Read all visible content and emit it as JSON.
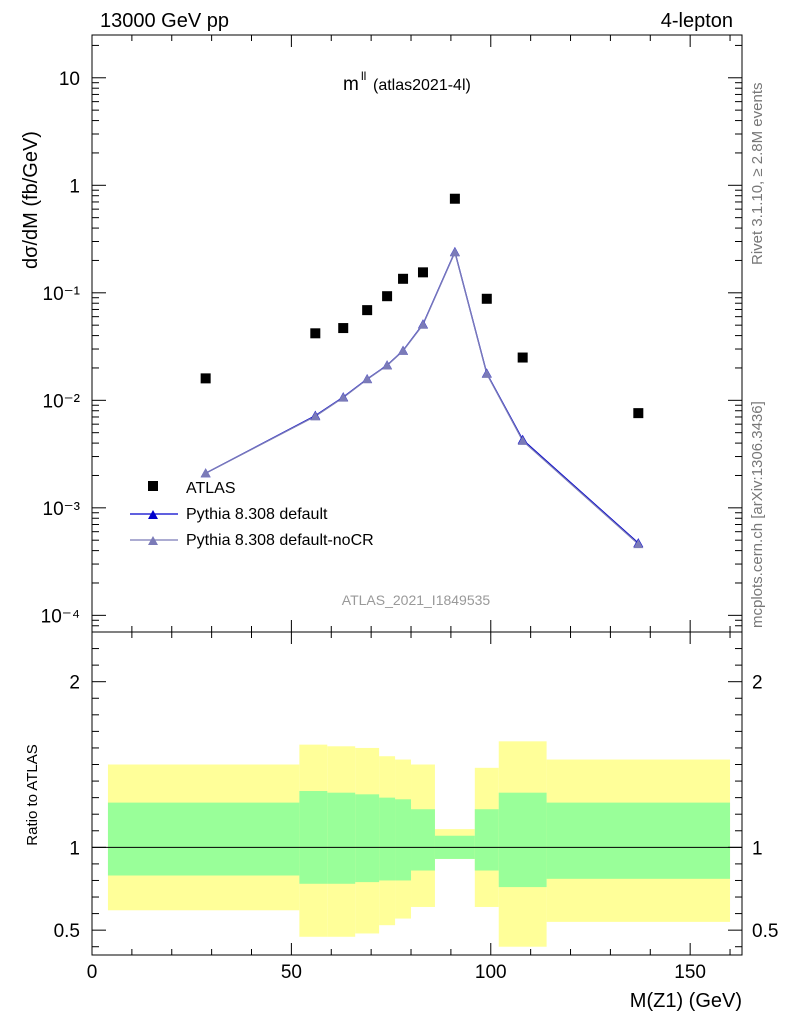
{
  "header": {
    "left": "13000 GeV pp",
    "right": "4-lepton"
  },
  "side": {
    "rivet": "Rivet 3.1.10, ≥ 2.8M events",
    "mcplots": "mcplots.cern.ch [arXiv:1306.3436]"
  },
  "analysis_id": "ATLAS_2021_I1849535",
  "chart_data": [
    {
      "type": "scatter",
      "title_main": "m",
      "title_sup": "ll",
      "title_sub": "(atlas2021-4l)",
      "xlabel": "M(Z1) (GeV)",
      "ylabel": "dσ/dM (fb/GeV)",
      "xlim": [
        0,
        163
      ],
      "ylim": [
        7e-05,
        25
      ],
      "yscale": "log",
      "x_ticks": [
        "0",
        "50",
        "100",
        "150"
      ],
      "y_ticks": [
        "10⁻⁴",
        "10⁻³",
        "10⁻²",
        "10⁻¹",
        "1",
        "10"
      ],
      "legend_position": "bottom-left",
      "series": [
        {
          "name": "ATLAS",
          "marker": "square",
          "color": "#000000",
          "x": [
            28.5,
            56,
            63,
            69,
            74,
            78,
            83,
            91,
            99,
            108,
            137
          ],
          "y": [
            0.016,
            0.042,
            0.047,
            0.069,
            0.093,
            0.135,
            0.155,
            0.75,
            0.088,
            0.025,
            0.0076
          ]
        },
        {
          "name": "Pythia 8.308 default",
          "marker": "triangle",
          "color": "#0000cc",
          "x": [
            28.5,
            56,
            63,
            69,
            74,
            78,
            83,
            91,
            99,
            108,
            137
          ],
          "y": [
            0.0021,
            0.0072,
            0.0107,
            0.0158,
            0.0212,
            0.029,
            0.051,
            0.24,
            0.0178,
            0.0043,
            0.00047
          ]
        },
        {
          "name": "Pythia 8.308 default-noCR",
          "marker": "triangle",
          "color": "#7b7bb8",
          "x": [
            28.5,
            56,
            63,
            69,
            74,
            78,
            83,
            91,
            99,
            108,
            137
          ],
          "y": [
            0.0021,
            0.0071,
            0.0106,
            0.0157,
            0.0211,
            0.0288,
            0.0505,
            0.238,
            0.0176,
            0.0042,
            0.00046
          ]
        }
      ]
    },
    {
      "type": "area",
      "ylabel": "Ratio to ATLAS",
      "xlabel": "M(Z1) (GeV)",
      "xlim": [
        0,
        163
      ],
      "ylim": [
        0.35,
        2.3
      ],
      "y_ticks": [
        "0.5",
        "1",
        "2"
      ],
      "reference_line": 1,
      "bins": [
        {
          "x0": 4,
          "x1": 52,
          "inner": [
            0.83,
            1.27
          ],
          "outer": [
            0.62,
            1.5
          ]
        },
        {
          "x0": 52,
          "x1": 59,
          "inner": [
            0.78,
            1.34
          ],
          "outer": [
            0.46,
            1.62
          ]
        },
        {
          "x0": 59,
          "x1": 66,
          "inner": [
            0.78,
            1.33
          ],
          "outer": [
            0.46,
            1.61
          ]
        },
        {
          "x0": 66,
          "x1": 72,
          "inner": [
            0.79,
            1.32
          ],
          "outer": [
            0.48,
            1.6
          ]
        },
        {
          "x0": 72,
          "x1": 76,
          "inner": [
            0.8,
            1.3
          ],
          "outer": [
            0.53,
            1.55
          ]
        },
        {
          "x0": 76,
          "x1": 80,
          "inner": [
            0.8,
            1.29
          ],
          "outer": [
            0.57,
            1.53
          ]
        },
        {
          "x0": 80,
          "x1": 86,
          "inner": [
            0.86,
            1.23
          ],
          "outer": [
            0.64,
            1.5
          ]
        },
        {
          "x0": 86,
          "x1": 96,
          "inner": [
            0.93,
            1.07
          ],
          "outer": [
            0.93,
            1.11
          ]
        },
        {
          "x0": 96,
          "x1": 102,
          "inner": [
            0.86,
            1.23
          ],
          "outer": [
            0.64,
            1.48
          ]
        },
        {
          "x0": 102,
          "x1": 114,
          "inner": [
            0.76,
            1.33
          ],
          "outer": [
            0.4,
            1.64
          ]
        },
        {
          "x0": 114,
          "x1": 160,
          "inner": [
            0.81,
            1.27
          ],
          "outer": [
            0.55,
            1.53
          ]
        }
      ],
      "colors": {
        "inner": "#99ff99",
        "outer": "#ffff99"
      }
    }
  ]
}
